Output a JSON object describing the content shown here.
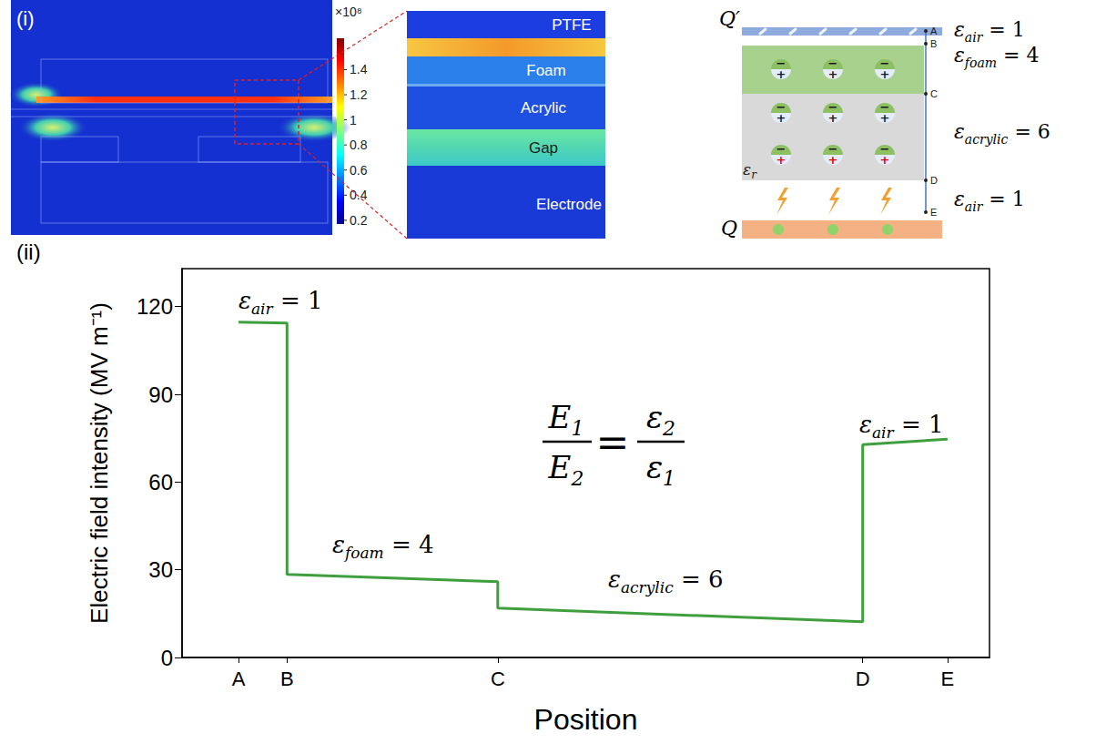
{
  "panel_i": {
    "label": "(i)",
    "colorbar": {
      "multiplier": "×10⁸",
      "range": [
        0.17,
        1.65
      ],
      "ticks": [
        0.2,
        0.4,
        0.6,
        0.8,
        1,
        1.2,
        1.4
      ]
    },
    "zoom_layers": [
      "PTFE",
      "Foam",
      "Acrylic",
      "Gap",
      "Electrode"
    ],
    "diagram": {
      "top_charge": "Q′",
      "bottom_charge": "Q",
      "points": [
        "A",
        "B",
        "C",
        "D",
        "E"
      ],
      "layers": [
        {
          "base": "ε",
          "sub": "air",
          "rest": " = 1"
        },
        {
          "base": "ε",
          "sub": "foam",
          "rest": " = 4"
        },
        {
          "base": "ε",
          "sub": "acrylic",
          "rest": " = 6"
        },
        {
          "base": "ε",
          "sub": "air",
          "rest": " = 1"
        }
      ],
      "dipole_negative": "−",
      "dipole_positive": "+",
      "relative_permittivity": {
        "base": "ε",
        "sub": "r"
      }
    }
  },
  "chart_data": {
    "type": "line",
    "panel_label": "(ii)",
    "x_label": "Position",
    "y_label": "Electric field intensity (MV m⁻¹)",
    "x": [
      7,
      13,
      13,
      39.1,
      39.1,
      84.3,
      84.3,
      94.8
    ],
    "values": [
      114.7,
      114.4,
      28.4,
      25.9,
      16.9,
      12.2,
      72.8,
      74.7
    ],
    "color": "#3f9f3f",
    "xlim": [
      0,
      100
    ],
    "xticks": [
      {
        "value": 7,
        "label": "A"
      },
      {
        "value": 13,
        "label": "B"
      },
      {
        "value": 39.1,
        "label": "C"
      },
      {
        "value": 84.3,
        "label": "D"
      },
      {
        "value": 94.8,
        "label": "E"
      }
    ],
    "ylim": [
      0,
      133
    ],
    "yticks": [
      0,
      30,
      60,
      90,
      120
    ],
    "grid": false,
    "annotations": [
      {
        "base": "ε",
        "sub": "air",
        "rest": " = 1"
      },
      {
        "base": "ε",
        "sub": "foam",
        "rest": " = 4"
      },
      {
        "base": "ε",
        "sub": "acrylic",
        "rest": " = 6"
      },
      {
        "base": "ε",
        "sub": "air",
        "rest": " = 1"
      }
    ],
    "formula": {
      "lhs_numerator": {
        "base": "E",
        "sub": "1"
      },
      "lhs_denominator": {
        "base": "E",
        "sub": "2"
      },
      "equals": "=",
      "rhs_numerator": {
        "base": "ε",
        "sub": "2"
      },
      "rhs_denominator": {
        "base": "ε",
        "sub": "1"
      }
    }
  }
}
